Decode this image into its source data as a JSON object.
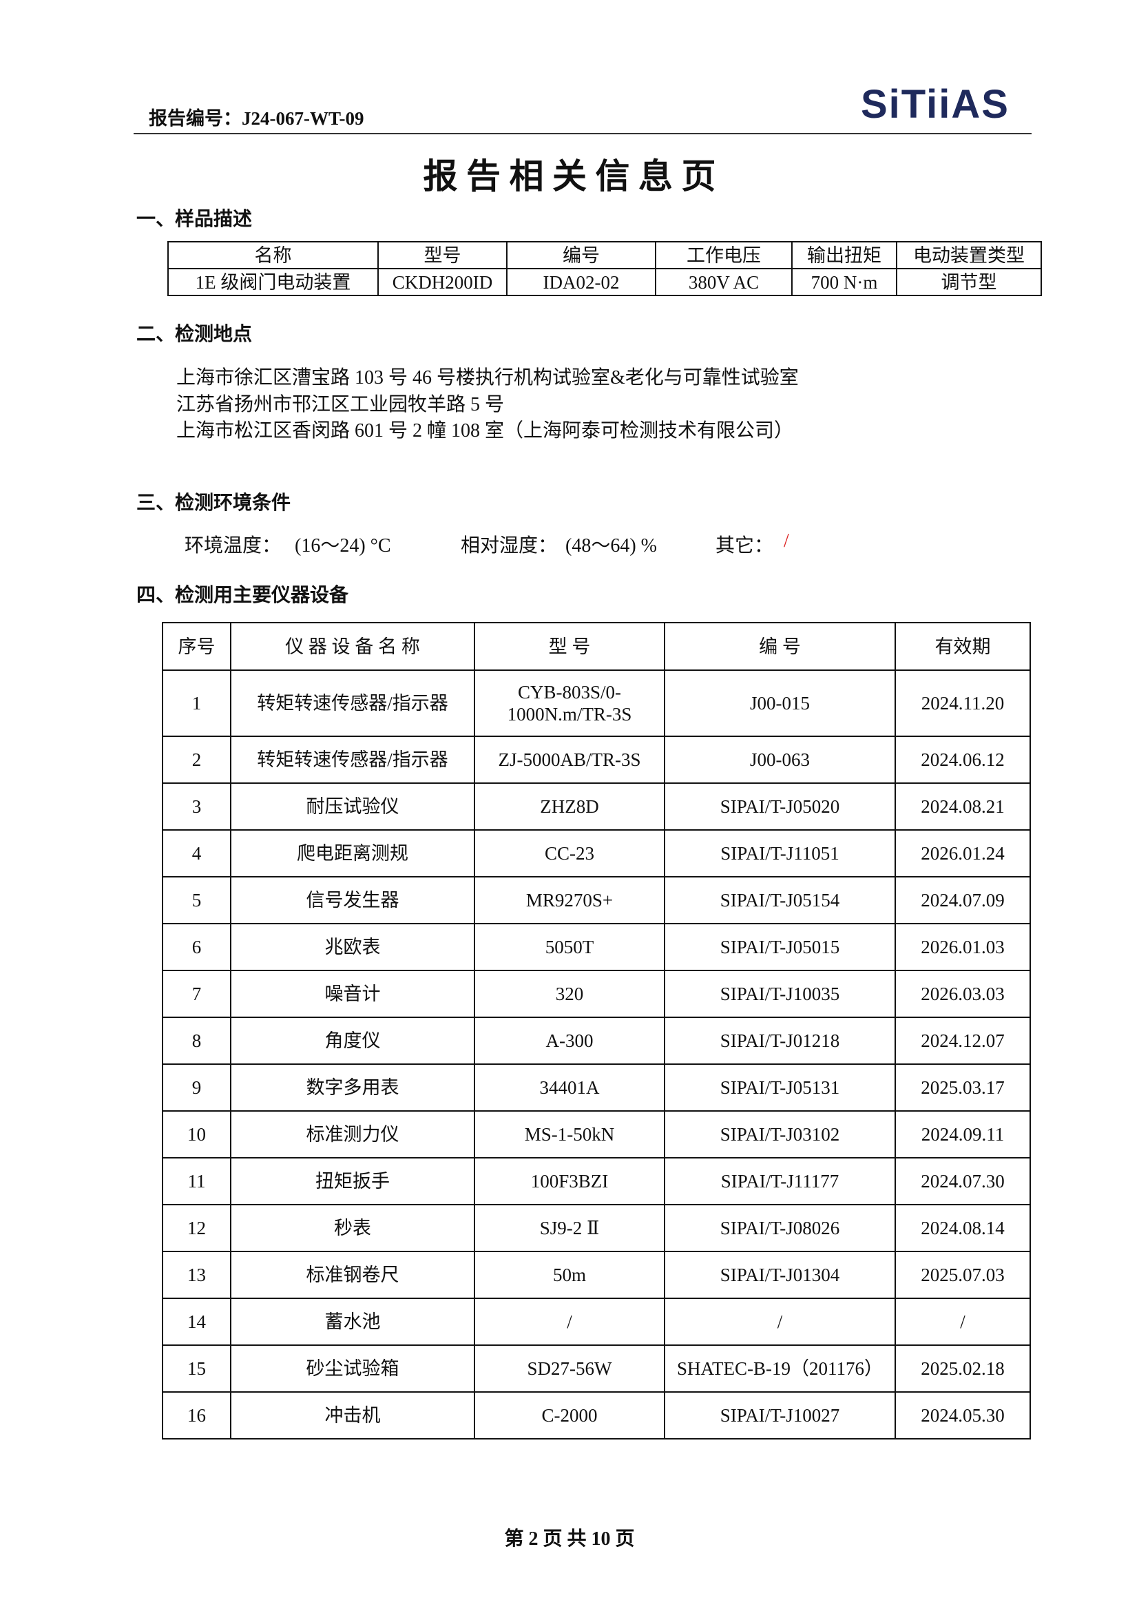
{
  "header": {
    "report_no": "报告编号：J24-067-WT-09",
    "logo": "SiTiiAS"
  },
  "title": "报 告 相 关 信 息 页",
  "section1": {
    "heading": "一、样品描述",
    "table": {
      "columns": [
        "名称",
        "型号",
        "编号",
        "工作电压",
        "输出扭矩",
        "电动装置类型"
      ],
      "rows": [
        [
          "1E 级阀门电动装置",
          "CKDH200ID",
          "IDA02-02",
          "380V AC",
          "700 N·m",
          "调节型"
        ]
      ]
    }
  },
  "section2": {
    "heading": "二、检测地点",
    "lines": [
      "上海市徐汇区漕宝路 103 号 46 号楼执行机构试验室&老化与可靠性试验室",
      "江苏省扬州市邗江区工业园牧羊路 5 号",
      "上海市松江区香闵路 601 号 2 幢 108 室（上海阿泰可检测技术有限公司）"
    ]
  },
  "section3": {
    "heading": "三、检测环境条件",
    "items": [
      {
        "label": "环境温度：",
        "value": "(16～24) °C"
      },
      {
        "label": "相对湿度：",
        "value": "(48～64) %"
      },
      {
        "label": "其它：",
        "value": "/"
      }
    ]
  },
  "section4": {
    "heading": "四、检测用主要仪器设备",
    "table": {
      "columns": [
        "序号",
        "仪 器 设 备 名 称",
        "型 号",
        "编 号",
        "有效期"
      ],
      "rows": [
        [
          "1",
          "转矩转速传感器/指示器",
          "CYB-803S/0-1000N.m/TR-3S",
          "J00-015",
          "2024.11.20"
        ],
        [
          "2",
          "转矩转速传感器/指示器",
          "ZJ-5000AB/TR-3S",
          "J00-063",
          "2024.06.12"
        ],
        [
          "3",
          "耐压试验仪",
          "ZHZ8D",
          "SIPAI/T-J05020",
          "2024.08.21"
        ],
        [
          "4",
          "爬电距离测规",
          "CC-23",
          "SIPAI/T-J11051",
          "2026.01.24"
        ],
        [
          "5",
          "信号发生器",
          "MR9270S+",
          "SIPAI/T-J05154",
          "2024.07.09"
        ],
        [
          "6",
          "兆欧表",
          "5050T",
          "SIPAI/T-J05015",
          "2026.01.03"
        ],
        [
          "7",
          "噪音计",
          "320",
          "SIPAI/T-J10035",
          "2026.03.03"
        ],
        [
          "8",
          "角度仪",
          "A-300",
          "SIPAI/T-J01218",
          "2024.12.07"
        ],
        [
          "9",
          "数字多用表",
          "34401A",
          "SIPAI/T-J05131",
          "2025.03.17"
        ],
        [
          "10",
          "标准测力仪",
          "MS-1-50kN",
          "SIPAI/T-J03102",
          "2024.09.11"
        ],
        [
          "11",
          "扭矩扳手",
          "100F3BZI",
          "SIPAI/T-J11177",
          "2024.07.30"
        ],
        [
          "12",
          "秒表",
          "SJ9-2 Ⅱ",
          "SIPAI/T-J08026",
          "2024.08.14"
        ],
        [
          "13",
          "标准钢卷尺",
          "50m",
          "SIPAI/T-J01304",
          "2025.07.03"
        ],
        [
          "14",
          "蓄水池",
          "/",
          "/",
          "/"
        ],
        [
          "15",
          "砂尘试验箱",
          "SD27-56W",
          "SHATEC-B-19（201176）",
          "2025.02.18"
        ],
        [
          "16",
          "冲击机",
          "C-2000",
          "SIPAI/T-J10027",
          "2024.05.30"
        ]
      ]
    }
  },
  "footer": "第 2 页 共 10 页"
}
